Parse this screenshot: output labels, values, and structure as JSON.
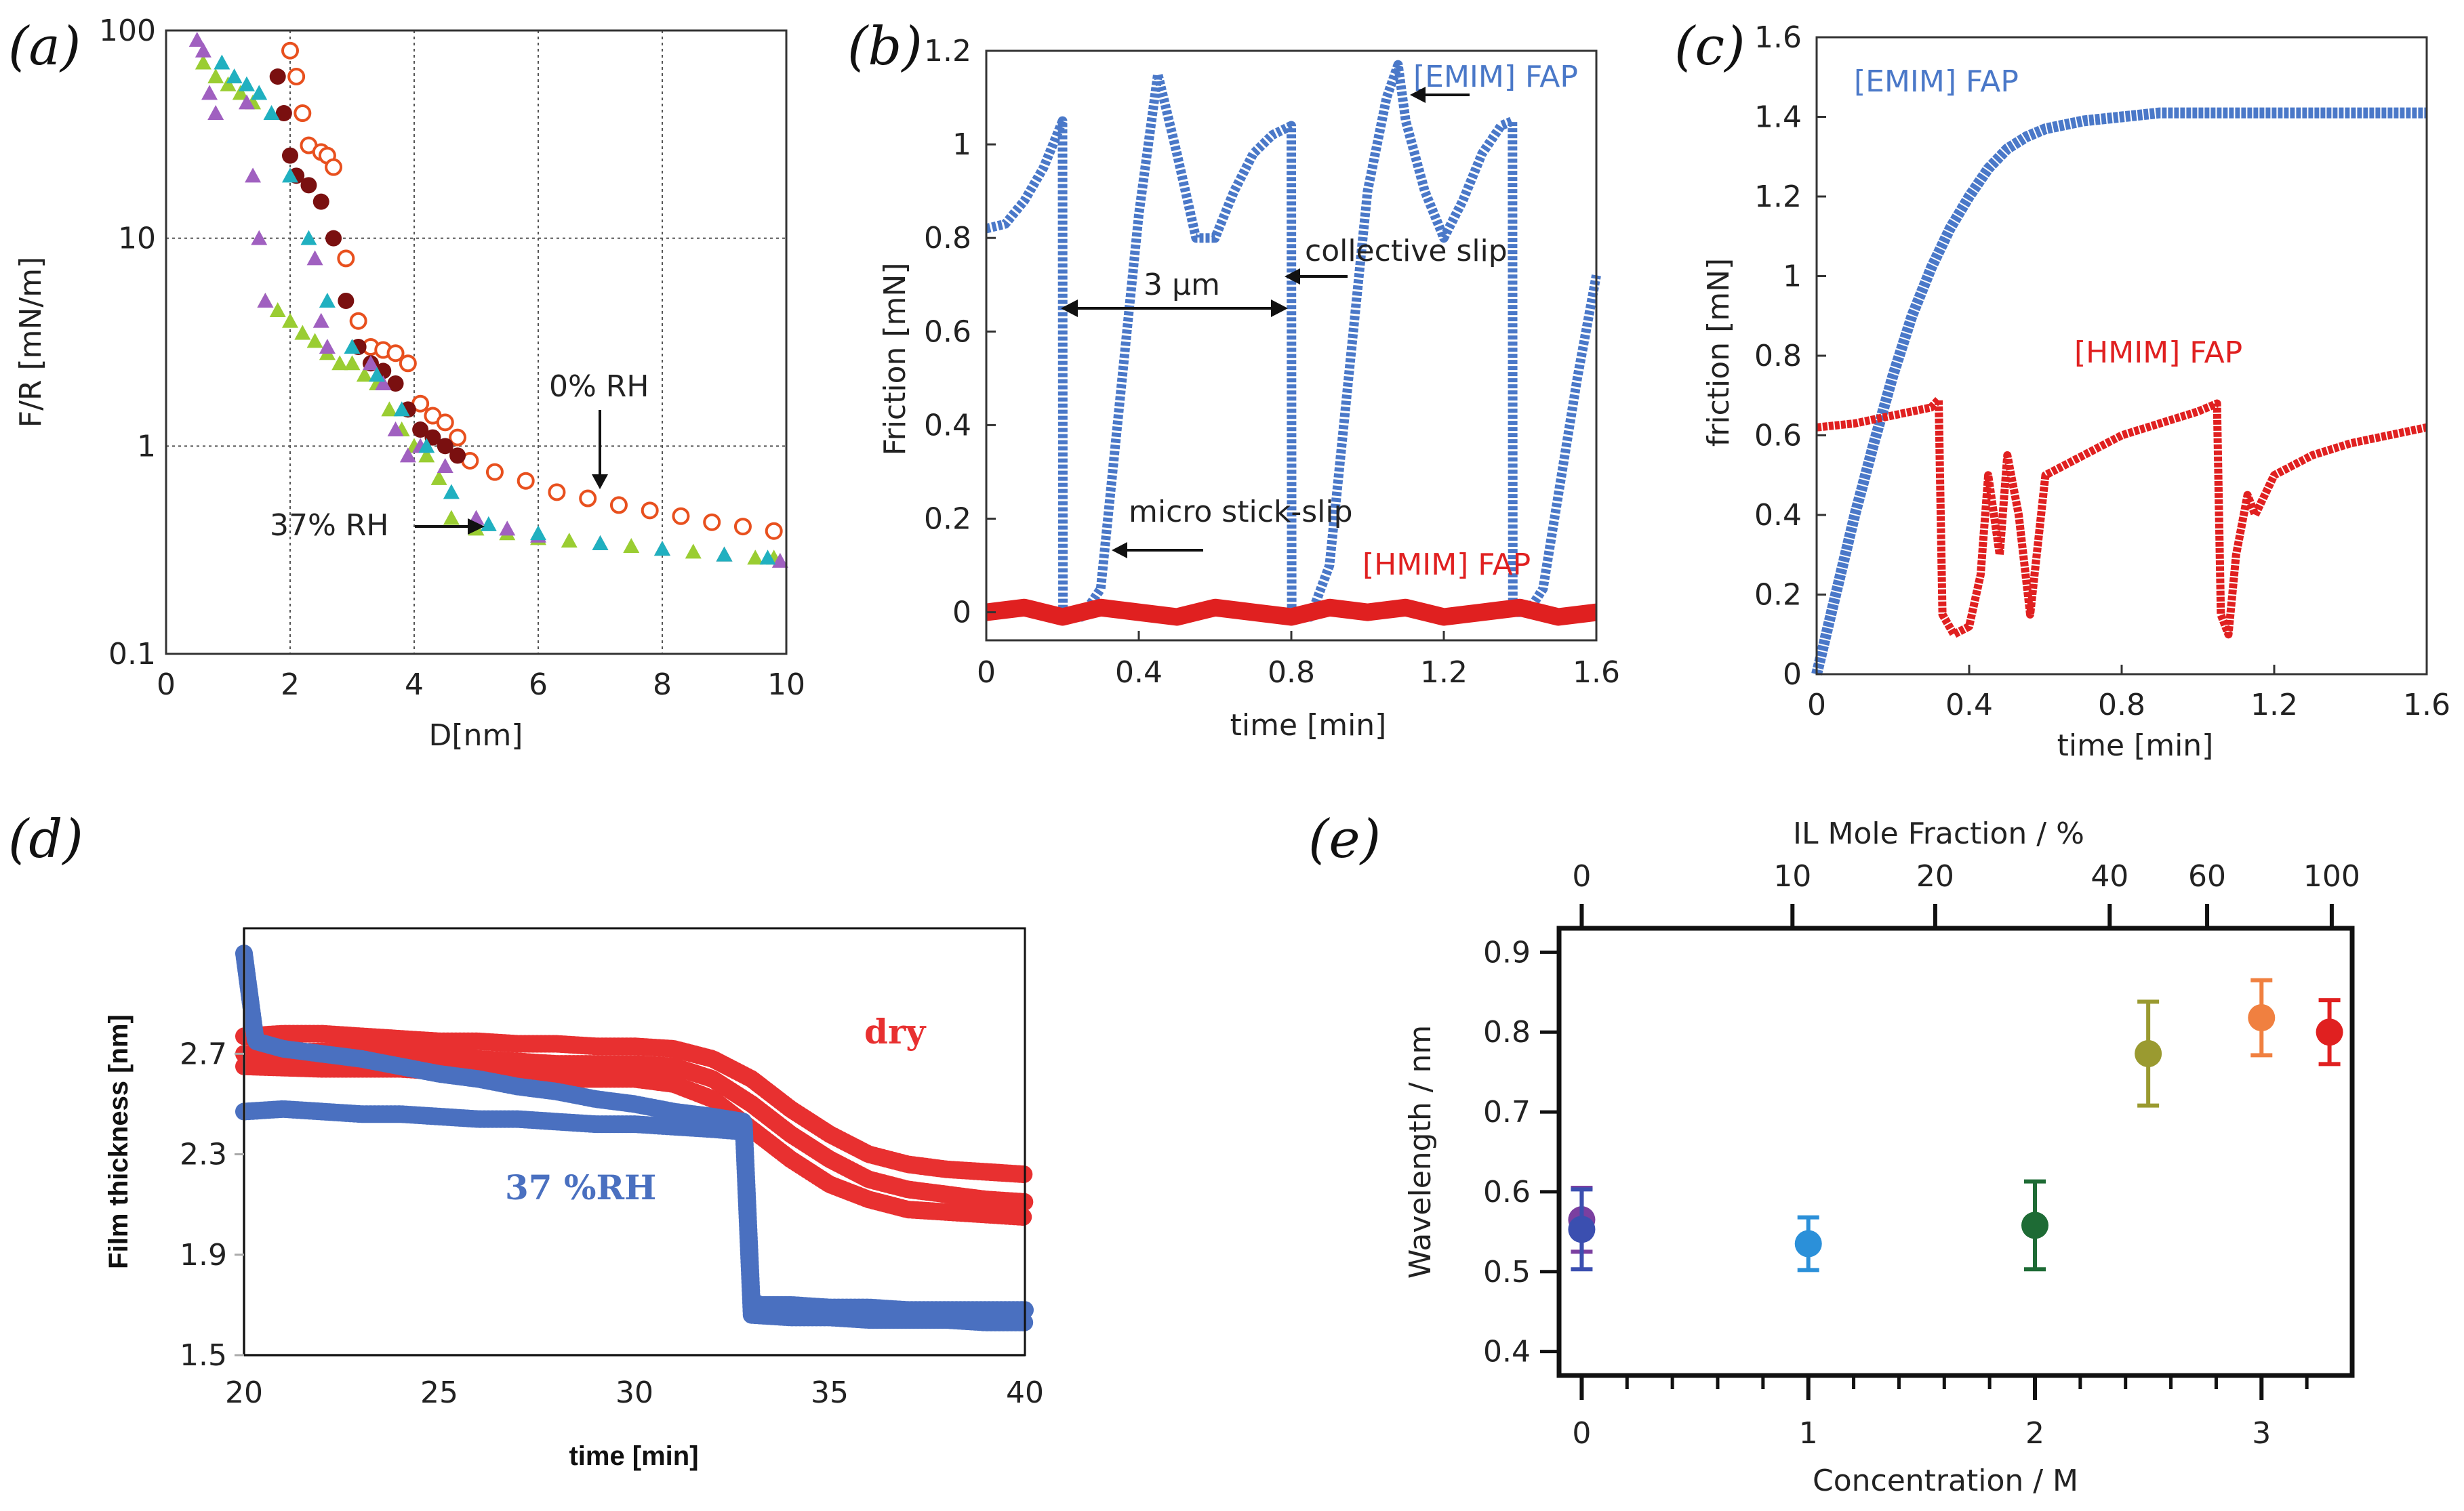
{
  "chart_data": [
    {
      "panel": "(a)",
      "type": "scatter",
      "xlabel": "D[nm]",
      "ylabel": "F/R [mN/m]",
      "xlim": [
        0,
        10
      ],
      "ylim": [
        0.1,
        100
      ],
      "yscale": "log",
      "grid": true,
      "xticks": [
        "0",
        "2",
        "4",
        "6",
        "8",
        "10"
      ],
      "yticks": [
        "0.1",
        "1",
        "10",
        "100"
      ],
      "annotations": [
        "0% RH",
        "37% RH"
      ],
      "series": [
        {
          "name": "0% RH",
          "color": "#e8501e",
          "x": [
            2.0,
            2.1,
            2.2,
            2.3,
            2.5,
            2.6,
            2.7,
            2.9,
            3.1,
            3.3,
            3.5,
            3.7,
            3.9,
            4.1,
            4.3,
            4.5,
            4.7,
            4.9,
            5.3,
            5.8,
            6.3,
            6.8,
            7.3,
            7.8,
            8.3,
            8.8,
            9.3,
            9.8
          ],
          "y": [
            80,
            60,
            40,
            28,
            26,
            25,
            22,
            8,
            4,
            3,
            2.9,
            2.8,
            2.5,
            1.6,
            1.4,
            1.3,
            1.1,
            0.85,
            0.75,
            0.68,
            0.6,
            0.56,
            0.52,
            0.49,
            0.46,
            0.43,
            0.41,
            0.39
          ]
        },
        {
          "name": "0% RH (dark)",
          "color": "#7a1010",
          "x": [
            1.8,
            1.9,
            2.0,
            2.1,
            2.3,
            2.5,
            2.7,
            2.9,
            3.1,
            3.3,
            3.5,
            3.7,
            3.9,
            4.1,
            4.3,
            4.5,
            4.7
          ],
          "y": [
            60,
            40,
            25,
            20,
            18,
            15,
            10,
            5,
            3,
            2.5,
            2.3,
            2.0,
            1.5,
            1.2,
            1.1,
            1.0,
            0.9
          ]
        },
        {
          "name": "37% RH",
          "color": "#9acd32",
          "x": [
            0.6,
            0.8,
            1.0,
            1.2,
            1.4,
            1.6,
            1.8,
            2.0,
            2.2,
            2.4,
            2.6,
            2.8,
            3.0,
            3.2,
            3.4,
            3.6,
            3.8,
            4.0,
            4.2,
            4.4,
            4.6,
            5.0,
            5.5,
            6.0,
            6.5,
            7.0,
            7.5,
            8.0,
            8.5,
            9.0,
            9.5,
            9.8
          ],
          "y": [
            70,
            60,
            55,
            50,
            45,
            5,
            4.5,
            4,
            3.5,
            3.2,
            2.8,
            2.5,
            2.5,
            2.2,
            2.0,
            1.5,
            1.2,
            1.0,
            0.9,
            0.7,
            0.45,
            0.4,
            0.38,
            0.36,
            0.35,
            0.34,
            0.33,
            0.32,
            0.31,
            0.3,
            0.29,
            0.29
          ]
        },
        {
          "name": "37% RH (violet)",
          "color": "#a060c0",
          "x": [
            0.5,
            0.6,
            0.7,
            0.8,
            1.3,
            1.4,
            1.5,
            1.6,
            2.4,
            2.5,
            2.6,
            3.3,
            3.5,
            3.7,
            3.9,
            4.1,
            4.5,
            5.0,
            5.5,
            6.0,
            7.0,
            8.0,
            9.0,
            9.9
          ],
          "y": [
            90,
            80,
            50,
            40,
            45,
            20,
            10,
            5,
            8,
            4,
            3,
            2.5,
            2.0,
            1.2,
            0.9,
            1.0,
            0.8,
            0.45,
            0.4,
            0.37,
            0.34,
            0.32,
            0.3,
            0.28
          ]
        },
        {
          "name": "37% RH (teal)",
          "color": "#20b0c0",
          "x": [
            0.9,
            1.1,
            1.3,
            1.5,
            1.7,
            2.0,
            2.3,
            2.6,
            3.0,
            3.4,
            3.8,
            4.2,
            4.6,
            5.2,
            6.0,
            7.0,
            8.0,
            9.0,
            9.7
          ],
          "y": [
            70,
            60,
            55,
            50,
            40,
            20,
            10,
            5,
            3,
            2.2,
            1.5,
            1.0,
            0.6,
            0.42,
            0.38,
            0.34,
            0.32,
            0.3,
            0.29
          ]
        }
      ]
    },
    {
      "panel": "(b)",
      "type": "line",
      "xlabel": "time [min]",
      "ylabel": "Friction [mN]",
      "xlim": [
        0,
        1.6
      ],
      "ylim": [
        -0.06,
        1.2
      ],
      "xticks": [
        "0",
        "0.4",
        "0.8",
        "1.2",
        "1.6"
      ],
      "yticks": [
        "0",
        "0.2",
        "0.4",
        "0.6",
        "0.8",
        "1",
        "1.2"
      ],
      "annotations": [
        "[EMIM] FAP",
        "collective slip",
        "3 μm",
        "micro stick-slip",
        "[HMIM] FAP"
      ],
      "series": [
        {
          "name": "[EMIM] FAP",
          "color": "#4a78c8",
          "x": [
            0,
            0.05,
            0.1,
            0.15,
            0.2,
            0.201,
            0.25,
            0.3,
            0.35,
            0.4,
            0.45,
            0.5,
            0.55,
            0.6,
            0.65,
            0.7,
            0.75,
            0.8,
            0.801,
            0.85,
            0.9,
            0.95,
            1.0,
            1.05,
            1.08,
            1.1,
            1.15,
            1.2,
            1.25,
            1.3,
            1.35,
            1.38,
            1.381,
            1.42,
            1.46,
            1.5,
            1.55,
            1.6
          ],
          "y": [
            0.82,
            0.83,
            0.88,
            0.95,
            1.05,
            0.0,
            -0.01,
            0.05,
            0.45,
            0.85,
            1.15,
            0.98,
            0.8,
            0.8,
            0.9,
            0.98,
            1.02,
            1.04,
            0.0,
            -0.01,
            0.1,
            0.5,
            0.9,
            1.1,
            1.17,
            1.05,
            0.9,
            0.8,
            0.88,
            0.98,
            1.04,
            1.05,
            0.0,
            0.0,
            0.05,
            0.25,
            0.5,
            0.72
          ]
        },
        {
          "name": "[HMIM] FAP",
          "color": "#e02020",
          "x": [
            0,
            0.1,
            0.2,
            0.3,
            0.4,
            0.5,
            0.6,
            0.7,
            0.8,
            0.9,
            1.0,
            1.1,
            1.2,
            1.3,
            1.4,
            1.5,
            1.6
          ],
          "y": [
            0,
            0.01,
            -0.01,
            0.01,
            0,
            -0.01,
            0.01,
            0,
            -0.01,
            0.01,
            0,
            0.01,
            -0.01,
            0,
            0.01,
            -0.01,
            0
          ]
        }
      ]
    },
    {
      "panel": "(c)",
      "type": "line",
      "xlabel": "time [min]",
      "ylabel": "friction [mN]",
      "xlim": [
        0,
        1.6
      ],
      "ylim": [
        0,
        1.6
      ],
      "xticks": [
        "0",
        "0.4",
        "0.8",
        "1.2",
        "1.6"
      ],
      "yticks": [
        "0",
        "0.2",
        "0.4",
        "0.6",
        "0.8",
        "1",
        "1.2",
        "1.4",
        "1.6"
      ],
      "annotations": [
        "[EMIM] FAP",
        "[HMIM] FAP"
      ],
      "series": [
        {
          "name": "[EMIM] FAP",
          "color": "#4a78c8",
          "x": [
            0,
            0.05,
            0.1,
            0.15,
            0.2,
            0.25,
            0.3,
            0.35,
            0.4,
            0.45,
            0.5,
            0.55,
            0.6,
            0.7,
            0.8,
            0.9,
            1.0,
            1.1,
            1.2,
            1.3,
            1.4,
            1.5,
            1.6
          ],
          "y": [
            0,
            0.2,
            0.4,
            0.58,
            0.75,
            0.9,
            1.02,
            1.12,
            1.2,
            1.27,
            1.32,
            1.35,
            1.37,
            1.39,
            1.4,
            1.41,
            1.41,
            1.41,
            1.41,
            1.41,
            1.41,
            1.41,
            1.41
          ]
        },
        {
          "name": "[HMIM] FAP",
          "color": "#e02020",
          "x": [
            0,
            0.1,
            0.2,
            0.3,
            0.32,
            0.33,
            0.36,
            0.4,
            0.43,
            0.45,
            0.48,
            0.5,
            0.53,
            0.56,
            0.6,
            0.7,
            0.8,
            0.9,
            1.0,
            1.05,
            1.06,
            1.08,
            1.1,
            1.13,
            1.15,
            1.2,
            1.3,
            1.4,
            1.5,
            1.6
          ],
          "y": [
            0.62,
            0.63,
            0.65,
            0.67,
            0.69,
            0.15,
            0.1,
            0.12,
            0.25,
            0.5,
            0.3,
            0.55,
            0.4,
            0.15,
            0.5,
            0.55,
            0.6,
            0.63,
            0.66,
            0.68,
            0.15,
            0.1,
            0.3,
            0.45,
            0.4,
            0.5,
            0.55,
            0.58,
            0.6,
            0.62
          ]
        }
      ]
    },
    {
      "panel": "(d)",
      "type": "scatter",
      "xlabel": "time [min]",
      "ylabel": "Film thickness [nm]",
      "xlim": [
        20,
        40
      ],
      "ylim": [
        1.5,
        3.2
      ],
      "xticks": [
        "20",
        "25",
        "30",
        "35",
        "40"
      ],
      "yticks": [
        "1.5",
        "1.9",
        "2.3",
        "2.7"
      ],
      "annotations": [
        "dry",
        "37 %RH"
      ],
      "series": [
        {
          "name": "dry (upper)",
          "color": "#e83030",
          "x": [
            20,
            21,
            22,
            23,
            24,
            25,
            26,
            27,
            28,
            29,
            30,
            31,
            32,
            33,
            34,
            35,
            36,
            37,
            38,
            39,
            40
          ],
          "y": [
            2.77,
            2.78,
            2.78,
            2.77,
            2.76,
            2.75,
            2.75,
            2.74,
            2.74,
            2.73,
            2.73,
            2.72,
            2.68,
            2.6,
            2.48,
            2.38,
            2.3,
            2.26,
            2.24,
            2.23,
            2.22
          ]
        },
        {
          "name": "dry (middle)",
          "color": "#e83030",
          "x": [
            20,
            22,
            24,
            26,
            28,
            30,
            31,
            32,
            33,
            34,
            35,
            36,
            37,
            38,
            39,
            40
          ],
          "y": [
            2.7,
            2.71,
            2.7,
            2.68,
            2.66,
            2.66,
            2.65,
            2.6,
            2.5,
            2.38,
            2.28,
            2.2,
            2.16,
            2.14,
            2.12,
            2.11
          ]
        },
        {
          "name": "dry (lower)",
          "color": "#e83030",
          "x": [
            20,
            22,
            24,
            26,
            28,
            30,
            31,
            32,
            33,
            34,
            35,
            36,
            37,
            38,
            39,
            40
          ],
          "y": [
            2.65,
            2.64,
            2.64,
            2.62,
            2.6,
            2.6,
            2.58,
            2.52,
            2.4,
            2.28,
            2.18,
            2.12,
            2.08,
            2.07,
            2.06,
            2.05
          ]
        },
        {
          "name": "37 %RH (upper)",
          "color": "#4a70c0",
          "x": [
            20,
            20.3,
            21,
            22,
            23,
            24,
            25,
            26,
            27,
            28,
            29,
            30,
            31,
            32,
            32.8,
            33.0,
            33.2,
            34,
            35,
            36,
            37,
            38,
            39,
            40
          ],
          "y": [
            3.1,
            2.75,
            2.72,
            2.7,
            2.68,
            2.65,
            2.62,
            2.6,
            2.57,
            2.55,
            2.52,
            2.5,
            2.47,
            2.45,
            2.43,
            1.72,
            1.7,
            1.7,
            1.69,
            1.69,
            1.68,
            1.68,
            1.68,
            1.68
          ]
        },
        {
          "name": "37 %RH (lower)",
          "color": "#4a70c0",
          "x": [
            20,
            21,
            22,
            23,
            24,
            25,
            26,
            27,
            28,
            29,
            30,
            31,
            32,
            32.8,
            33.0,
            34,
            35,
            36,
            37,
            38,
            39,
            40
          ],
          "y": [
            2.47,
            2.48,
            2.47,
            2.46,
            2.46,
            2.45,
            2.44,
            2.44,
            2.43,
            2.42,
            2.42,
            2.41,
            2.4,
            2.39,
            1.66,
            1.65,
            1.65,
            1.64,
            1.64,
            1.64,
            1.63,
            1.63
          ]
        }
      ]
    },
    {
      "panel": "(e)",
      "type": "scatter",
      "xlabel": "Concentration / M",
      "ylabel": "Wavelength / nm",
      "top_xlabel": "IL Mole Fraction / %",
      "xlim": [
        -0.1,
        3.4
      ],
      "ylim": [
        0.37,
        0.93
      ],
      "xticks": [
        "0",
        "1",
        "2",
        "3"
      ],
      "yticks": [
        "0.4",
        "0.5",
        "0.6",
        "0.7",
        "0.8",
        "0.9"
      ],
      "top_ticks": [
        {
          "label": "0",
          "conc": 0
        },
        {
          "label": "10",
          "conc": 0.93
        },
        {
          "label": "20",
          "conc": 1.56
        },
        {
          "label": "40",
          "conc": 2.33
        },
        {
          "label": "60",
          "conc": 2.76
        },
        {
          "label": "100",
          "conc": 3.31
        }
      ],
      "points": [
        {
          "x": 0.0,
          "y": 0.565,
          "err": 0.04,
          "color": "#7b3fa0"
        },
        {
          "x": 0.0,
          "y": 0.553,
          "err": 0.05,
          "color": "#3b4fb0"
        },
        {
          "x": 1.0,
          "y": 0.535,
          "err": 0.033,
          "color": "#2b90d9"
        },
        {
          "x": 2.0,
          "y": 0.558,
          "err": 0.055,
          "color": "#1e6b35"
        },
        {
          "x": 2.5,
          "y": 0.773,
          "err": 0.065,
          "color": "#9a9a30"
        },
        {
          "x": 3.0,
          "y": 0.818,
          "err": 0.047,
          "color": "#f08040"
        },
        {
          "x": 3.3,
          "y": 0.8,
          "err": 0.04,
          "color": "#e02020"
        }
      ]
    }
  ]
}
